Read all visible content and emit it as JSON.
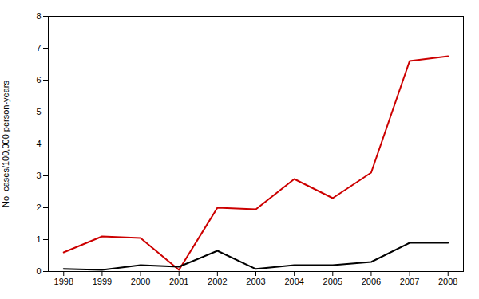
{
  "chart_data": {
    "type": "line",
    "ylabel": "No. cases/100,000 person-years",
    "x": [
      1998,
      1999,
      2000,
      2001,
      2002,
      2003,
      2004,
      2005,
      2006,
      2007,
      2008
    ],
    "series": [
      {
        "color": "#cc0000",
        "values": [
          0.6,
          1.1,
          1.05,
          0.05,
          2.0,
          1.95,
          2.9,
          2.3,
          3.1,
          6.6,
          6.75
        ]
      },
      {
        "color": "#000000",
        "values": [
          0.08,
          0.05,
          0.2,
          0.15,
          0.65,
          0.08,
          0.2,
          0.2,
          0.3,
          0.9,
          0.9
        ]
      }
    ],
    "xlim": [
      1997.6,
      2008.4
    ],
    "xticks": [
      1998,
      1999,
      2000,
      2001,
      2002,
      2003,
      2004,
      2005,
      2006,
      2007,
      2008
    ],
    "ylim": [
      0,
      8
    ],
    "yticks": [
      0,
      1,
      2,
      3,
      4,
      5,
      6,
      7,
      8
    ],
    "grid": false
  }
}
